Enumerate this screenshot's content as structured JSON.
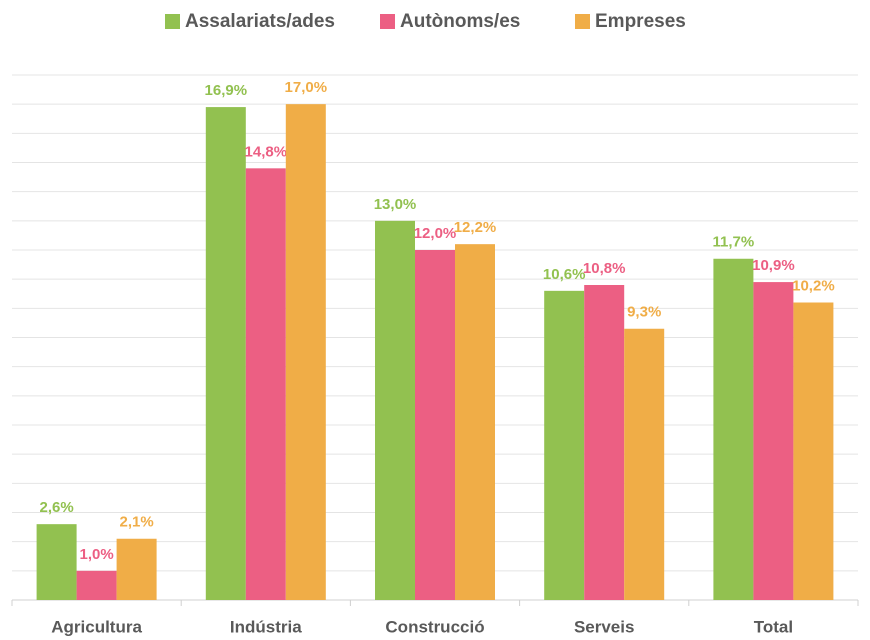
{
  "chart_data": {
    "type": "bar",
    "categories": [
      "Agricultura",
      "Indústria",
      "Construcció",
      "Serveis",
      "Total"
    ],
    "series": [
      {
        "name": "Assalariats/ades",
        "color": "#92c150",
        "values": [
          2.6,
          16.9,
          13.0,
          10.6,
          11.7
        ],
        "value_labels": [
          "2,6%",
          "16,9%",
          "13,0%",
          "10,6%",
          "11,7%"
        ]
      },
      {
        "name": "Autònoms/es",
        "color": "#ec5f83",
        "values": [
          1.0,
          14.8,
          12.0,
          10.8,
          10.9
        ],
        "value_labels": [
          "1,0%",
          "14,8%",
          "12,0%",
          "10,8%",
          "10,9%"
        ]
      },
      {
        "name": "Empreses",
        "color": "#f0ad47",
        "values": [
          2.1,
          17.0,
          12.2,
          9.3,
          10.2
        ],
        "value_labels": [
          "2,1%",
          "17,0%",
          "12,2%",
          "9,3%",
          "10,2%"
        ]
      }
    ],
    "ylim": [
      0,
      18
    ],
    "yticks": [
      0,
      1,
      2,
      3,
      4,
      5,
      6,
      7,
      8,
      9,
      10,
      11,
      12,
      13,
      14,
      15,
      16,
      17,
      18
    ],
    "grid": true,
    "legend": "top"
  }
}
